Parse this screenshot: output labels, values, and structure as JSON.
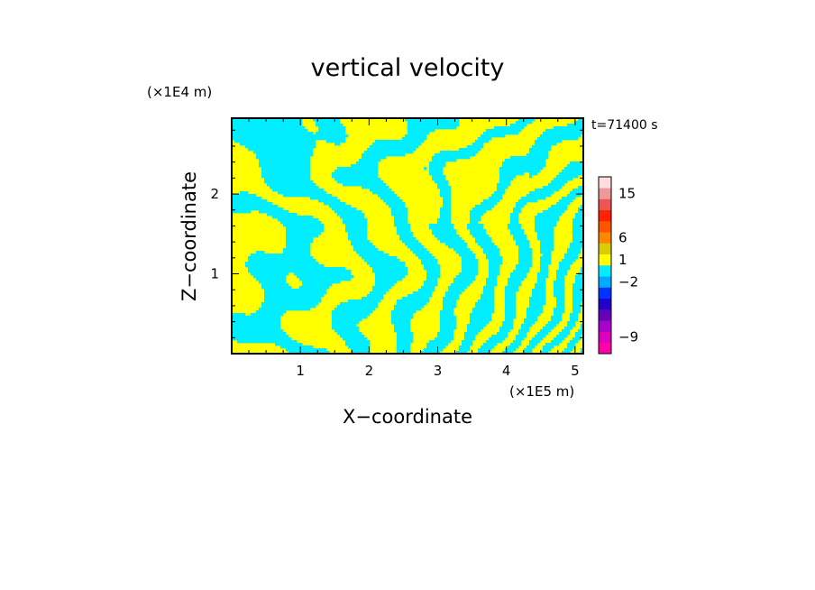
{
  "chart_data": {
    "type": "heatmap",
    "title": "vertical velocity",
    "xlabel": "X−coordinate",
    "ylabel": "Z−coordinate",
    "x_unit": "(×1E5 m)",
    "y_unit": "(×1E4 m)",
    "time_label": "t=71400 s",
    "xlim": [
      0,
      5.12
    ],
    "ylim": [
      0,
      2.95
    ],
    "x_ticks": [
      1,
      2,
      3,
      4,
      5
    ],
    "y_ticks": [
      1,
      2
    ],
    "field_colors": {
      "positive": "#ffff00",
      "negative": "#00eeff"
    },
    "colorbar": {
      "tick_labels": [
        "15",
        "6",
        "1",
        "−2",
        "−9"
      ],
      "tick_values": [
        15,
        6,
        1,
        -2,
        -9
      ],
      "colors": [
        "#ff00aa",
        "#dd00bb",
        "#aa00cc",
        "#6600bb",
        "#2200cc",
        "#0033ff",
        "#00aaff",
        "#00eeff",
        "#ffff00",
        "#ddcc00",
        "#ff8800",
        "#ff5500",
        "#ff2200",
        "#ee5555",
        "#ee9999",
        "#ffdddd"
      ]
    }
  }
}
